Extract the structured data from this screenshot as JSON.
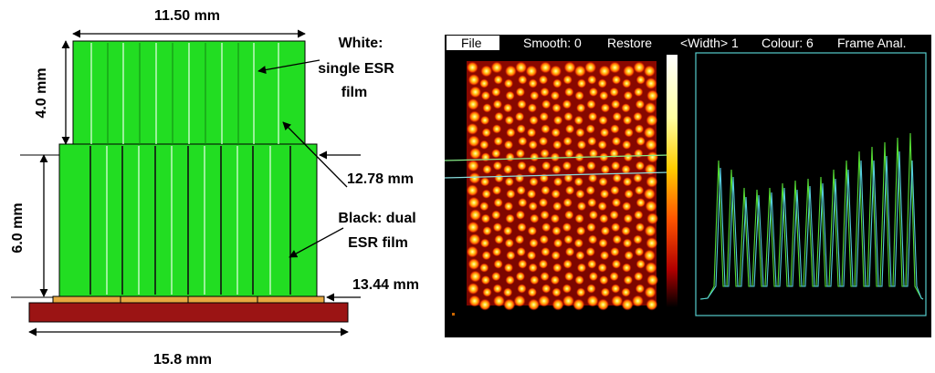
{
  "schematic": {
    "dim_top_width": "11.50 mm",
    "dim_top_height": "4.0 mm",
    "dim_bottom_height": "6.0 mm",
    "dim_mid_width": "12.78 mm",
    "dim_base_plate": "13.44 mm",
    "dim_total_width": "15.8 mm",
    "label_white_line1": "White:",
    "label_white_line2": "single ESR",
    "label_white_line3": "film",
    "label_black_line1": "Black: dual",
    "label_black_line2": "ESR film"
  },
  "flood_viewer": {
    "menu": {
      "file": "File",
      "smooth": "Smooth: 0",
      "restore": "Restore",
      "width": "<Width> 1",
      "colour": "Colour: 6",
      "frame": "Frame Anal."
    },
    "grid_rows": 20,
    "grid_cols": 16
  },
  "colors": {
    "crystal_green": "#22dd22",
    "base_red": "#9b1414",
    "base_plate": "#e8a840",
    "profile_green": "#55dd33",
    "profile_cyan": "#55ccdd"
  }
}
